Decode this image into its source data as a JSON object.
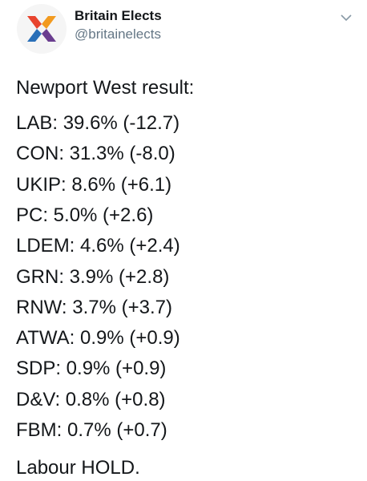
{
  "header": {
    "name": "Britain Elects",
    "handle": "@britainelects"
  },
  "tweet": {
    "intro": "Newport West result:",
    "results": [
      "LAB: 39.6% (-12.7)",
      "CON: 31.3% (-8.0)",
      "UKIP: 8.6% (+6.1)",
      "PC: 5.0% (+2.6)",
      "LDEM: 4.6% (+2.4)",
      "GRN: 3.9% (+2.8)",
      "RNW: 3.7% (+3.7)",
      "ATWA: 0.9% (+0.9)",
      "SDP: 0.9% (+0.9)",
      "D&V: 0.8% (+0.8)",
      "FBM: 0.7% (+0.7)"
    ],
    "outro": "Labour HOLD."
  }
}
